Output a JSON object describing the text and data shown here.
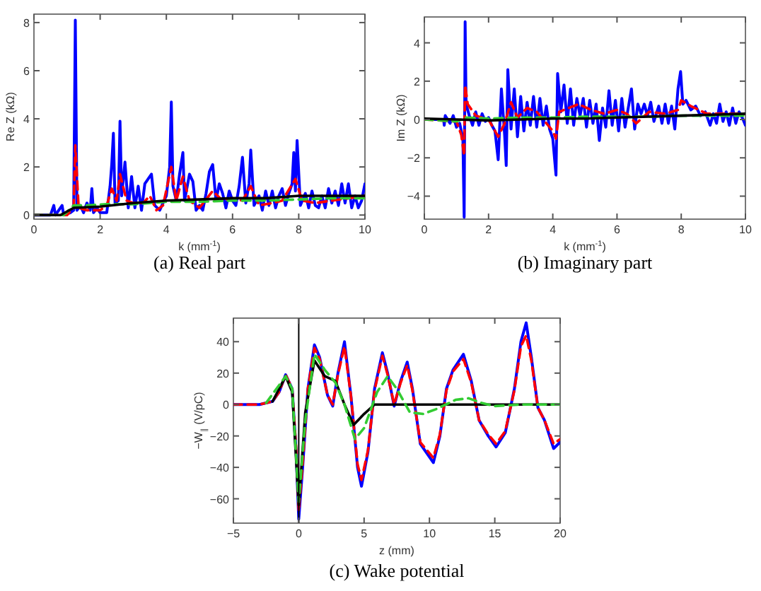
{
  "chart_data": [
    {
      "type": "line",
      "title": "(a) Real part",
      "xlabel": "k (mm$^{-1}$)",
      "ylabel": "Re Z (kΩ)",
      "xlim": [
        0,
        10
      ],
      "ylim": [
        -0.17,
        8.35
      ],
      "xticks": [
        0,
        2,
        4,
        6,
        8,
        10
      ],
      "yticks": [
        0,
        2,
        4,
        6,
        8
      ],
      "grid": false,
      "series": [
        {
          "color": "#0000ff",
          "line_style": "solid",
          "x": [
            0,
            0.5,
            0.6,
            0.65,
            0.85,
            0.9,
            1.1,
            1.2,
            1.25,
            1.3,
            1.4,
            1.5,
            1.6,
            1.7,
            1.75,
            1.8,
            1.9,
            2.0,
            2.2,
            2.3,
            2.35,
            2.4,
            2.45,
            2.55,
            2.6,
            2.65,
            2.75,
            2.85,
            2.95,
            3.05,
            3.15,
            3.25,
            3.35,
            3.45,
            3.55,
            3.65,
            3.8,
            3.9,
            4.0,
            4.1,
            4.15,
            4.2,
            4.3,
            4.4,
            4.5,
            4.55,
            4.7,
            4.8,
            4.9,
            5.0,
            5.1,
            5.2,
            5.3,
            5.4,
            5.5,
            5.6,
            5.7,
            5.8,
            5.9,
            6.0,
            6.1,
            6.2,
            6.3,
            6.4,
            6.5,
            6.55,
            6.65,
            6.8,
            6.9,
            7.0,
            7.1,
            7.2,
            7.3,
            7.4,
            7.5,
            7.6,
            7.7,
            7.8,
            7.85,
            7.9,
            7.95,
            8.05,
            8.2,
            8.3,
            8.4,
            8.5,
            8.6,
            8.7,
            8.8,
            8.9,
            9.0,
            9.1,
            9.2,
            9.3,
            9.4,
            9.5,
            9.6,
            9.7,
            9.8,
            9.9,
            10
          ],
          "values": [
            0,
            0,
            0.4,
            0,
            0.4,
            0,
            0.1,
            0.2,
            8.1,
            0.2,
            0.4,
            0.1,
            0.5,
            0.2,
            1.1,
            0.1,
            0.3,
            0.1,
            0.1,
            1.2,
            2.1,
            3.4,
            0.5,
            0.6,
            3.9,
            0.8,
            2.2,
            0.3,
            1.6,
            0.3,
            1.2,
            0.2,
            1.3,
            1.5,
            1.7,
            0.4,
            0.2,
            0.5,
            0.8,
            2.0,
            4.7,
            1.2,
            0.6,
            1.7,
            2.6,
            0.6,
            1.7,
            1.4,
            0.2,
            0.4,
            0.2,
            0.9,
            1.8,
            2.1,
            0.6,
            1.3,
            0.9,
            0.3,
            1.0,
            0.6,
            0.4,
            1.2,
            2.4,
            0.5,
            1.3,
            2.7,
            0.4,
            0.8,
            0.2,
            1.0,
            0.4,
            1.0,
            0.3,
            0.8,
            1.1,
            0.4,
            0.9,
            1.3,
            2.6,
            1.0,
            3.1,
            0.4,
            0.9,
            0.3,
            1.0,
            0.4,
            0.3,
            0.8,
            0.3,
            1.1,
            0.5,
            1.0,
            0.4,
            1.3,
            0.5,
            1.3,
            0.3,
            0.8,
            0.3,
            0.6,
            1.3
          ]
        },
        {
          "color": "#ff0000",
          "line_style": "dashed",
          "x": [
            0,
            1.0,
            1.2,
            1.25,
            1.35,
            1.6,
            2.0,
            2.2,
            2.35,
            2.5,
            2.6,
            2.8,
            3.0,
            3.3,
            3.5,
            3.7,
            3.9,
            4.15,
            4.3,
            4.5,
            4.7,
            5.0,
            5.4,
            5.7,
            6.0,
            6.3,
            6.55,
            6.8,
            7.2,
            7.5,
            7.9,
            8.1,
            8.5,
            9.0,
            9.5,
            10
          ],
          "values": [
            0,
            0,
            0.3,
            2.9,
            0.3,
            0.2,
            0.2,
            0.4,
            1.1,
            0.6,
            1.7,
            0.6,
            0.5,
            0.5,
            0.8,
            0.2,
            0.4,
            2.0,
            0.6,
            1.6,
            0.6,
            0.3,
            1.0,
            0.6,
            0.7,
            0.6,
            1.2,
            0.4,
            0.5,
            0.6,
            1.5,
            0.6,
            0.5,
            0.6,
            0.7,
            0.8
          ]
        },
        {
          "color": "#33cc33",
          "line_style": "dashed",
          "x": [
            0,
            0.9,
            1.2,
            1.6,
            2.2,
            3,
            4,
            5,
            6,
            7,
            8,
            9,
            10
          ],
          "values": [
            0,
            0,
            0.4,
            0.4,
            0.45,
            0.45,
            0.55,
            0.55,
            0.6,
            0.6,
            0.65,
            0.7,
            0.7
          ]
        },
        {
          "color": "#000000",
          "line_style": "solid",
          "x": [
            0,
            0.8,
            1.2,
            2,
            3,
            4,
            5,
            6,
            7,
            8,
            9,
            10
          ],
          "values": [
            0,
            0,
            0.3,
            0.35,
            0.5,
            0.6,
            0.65,
            0.7,
            0.7,
            0.8,
            0.8,
            0.8
          ]
        }
      ]
    },
    {
      "type": "line",
      "title": "(b) Imaginary part",
      "xlabel": "k (mm$^{-1}$)",
      "ylabel": "Im Z (kΩ)",
      "xlim": [
        0,
        10
      ],
      "ylim": [
        -5.2,
        5.35
      ],
      "xticks": [
        0,
        2,
        4,
        6,
        8,
        10
      ],
      "yticks": [
        {
          "value": -4,
          "label": "−4"
        },
        {
          "value": -2,
          "label": "−2"
        },
        0,
        2,
        4
      ],
      "grid": false,
      "series": [
        {
          "color": "#0000ff",
          "line_style": "solid",
          "x": [
            0,
            0.6,
            0.62,
            0.65,
            0.8,
            0.9,
            1.0,
            1.1,
            1.2,
            1.24,
            1.27,
            1.3,
            1.4,
            1.5,
            1.6,
            1.7,
            1.8,
            1.9,
            2.0,
            2.1,
            2.2,
            2.3,
            2.4,
            2.5,
            2.55,
            2.6,
            2.7,
            2.8,
            2.9,
            3.0,
            3.1,
            3.2,
            3.3,
            3.4,
            3.5,
            3.6,
            3.7,
            3.8,
            3.9,
            4.0,
            4.1,
            4.15,
            4.25,
            4.35,
            4.45,
            4.55,
            4.65,
            4.75,
            4.85,
            4.95,
            5.05,
            5.15,
            5.25,
            5.35,
            5.45,
            5.55,
            5.65,
            5.75,
            5.85,
            5.95,
            6.05,
            6.15,
            6.25,
            6.35,
            6.45,
            6.55,
            6.65,
            6.75,
            6.85,
            6.95,
            7.05,
            7.15,
            7.3,
            7.4,
            7.5,
            7.6,
            7.7,
            7.8,
            7.9,
            7.98,
            8.05,
            8.15,
            8.3,
            8.45,
            8.6,
            8.75,
            8.9,
            9.0,
            9.1,
            9.2,
            9.3,
            9.4,
            9.5,
            9.6,
            9.7,
            9.8,
            9.9,
            10
          ],
          "values": [
            0,
            0,
            -0.3,
            0.2,
            -0.2,
            0.2,
            -0.4,
            -0.2,
            -1.0,
            -5.1,
            5.1,
            0.8,
            0.2,
            -0.3,
            0.4,
            -0.3,
            0.3,
            -0.1,
            0.1,
            -0.3,
            -0.6,
            -2.1,
            1.6,
            -0.8,
            -2.4,
            2.6,
            -0.5,
            1.6,
            -0.9,
            1.2,
            -0.6,
            0.9,
            -0.3,
            1.2,
            -0.4,
            1.1,
            -0.3,
            0.7,
            -0.5,
            -1.0,
            -2.9,
            2.4,
            0.4,
            1.8,
            -0.2,
            1.6,
            -0.3,
            1.1,
            0.2,
            1.1,
            -0.4,
            1.0,
            -0.2,
            0.8,
            -1.1,
            0.6,
            -0.4,
            1.5,
            -0.3,
            1.0,
            -0.6,
            1.1,
            -0.4,
            0.6,
            1.6,
            -0.5,
            0.8,
            0.3,
            0.8,
            0.2,
            0.9,
            -0.1,
            0.7,
            -0.2,
            0.8,
            -0.2,
            0.7,
            -0.5,
            1.6,
            2.5,
            0.8,
            1.0,
            0.5,
            0.7,
            0.2,
            0.4,
            -0.3,
            0.3,
            -0.2,
            0.8,
            -0.1,
            0.4,
            -0.3,
            0.6,
            -0.2,
            0.4,
            0.1,
            -0.3
          ]
        },
        {
          "color": "#ff0000",
          "line_style": "dashed",
          "x": [
            0,
            1.0,
            1.15,
            1.24,
            1.27,
            1.35,
            1.6,
            2.0,
            2.3,
            2.5,
            2.7,
            2.9,
            3.2,
            3.5,
            3.8,
            4.0,
            4.1,
            4.2,
            4.5,
            4.8,
            5.2,
            5.6,
            6.0,
            6.3,
            6.6,
            7.0,
            7.5,
            7.9,
            8.0,
            8.3,
            8.8,
            9.3,
            10
          ],
          "values": [
            0,
            -0.1,
            -0.8,
            -1.9,
            1.8,
            0.8,
            0.2,
            0,
            -0.9,
            -0.2,
            0.9,
            0.1,
            0.6,
            0.4,
            -0.2,
            -0.6,
            -1.0,
            0.4,
            0.6,
            0.8,
            0.5,
            0.3,
            0.5,
            0.3,
            -0.2,
            0.4,
            0.3,
            0.5,
            1.0,
            0.7,
            0.3,
            0.3,
            0.3
          ]
        },
        {
          "color": "#33cc33",
          "line_style": "dashed",
          "x": [
            0,
            1,
            1.3,
            2,
            3,
            4,
            5,
            6,
            7,
            8,
            9,
            10
          ],
          "values": [
            0,
            -0.1,
            0.1,
            0.05,
            0.1,
            0.1,
            0.15,
            0.15,
            0.15,
            0.2,
            0.2,
            0.2
          ]
        },
        {
          "color": "#000000",
          "line_style": "solid",
          "x": [
            0,
            1,
            2,
            3,
            4,
            5,
            6,
            7,
            8,
            9,
            10
          ],
          "values": [
            0.05,
            0,
            -0.05,
            0,
            0.05,
            0.05,
            0.1,
            0.15,
            0.2,
            0.25,
            0.3
          ]
        }
      ]
    },
    {
      "type": "line",
      "title": "(c) Wake potential",
      "xlabel": "z (mm)",
      "ylabel": "−W$_{∥}$ (V/pC)",
      "xlim": [
        -5,
        20
      ],
      "ylim": [
        -75.5,
        55
      ],
      "xticks": [
        {
          "value": -5,
          "label": "−5"
        },
        0,
        5,
        10,
        15,
        20
      ],
      "yticks": [
        {
          "value": -60,
          "label": "−60"
        },
        {
          "value": -40,
          "label": "−40"
        },
        {
          "value": -20,
          "label": "−20"
        },
        0,
        20,
        40
      ],
      "grid": false,
      "ref_lines": [
        {
          "axis": "x",
          "value": 0,
          "color": "#000000",
          "line_style": "solid"
        }
      ],
      "series": [
        {
          "color": "#0000ff",
          "line_style": "solid",
          "x": [
            -5,
            -3,
            -2,
            -1.5,
            -1,
            -0.5,
            -0.2,
            0,
            0.3,
            0.7,
            1.2,
            1.6,
            2.2,
            2.6,
            3.0,
            3.5,
            4.0,
            4.5,
            4.8,
            5.3,
            5.8,
            6.4,
            6.8,
            7.3,
            7.8,
            8.3,
            8.7,
            9.3,
            10.3,
            10.8,
            11.3,
            11.8,
            12.6,
            13.2,
            13.8,
            14.5,
            15.1,
            15.8,
            16.5,
            17.0,
            17.4,
            17.8,
            18.3,
            18.8,
            19.5,
            20
          ],
          "values": [
            0,
            0,
            2,
            8,
            19,
            10,
            -30,
            -73,
            -40,
            10,
            38,
            30,
            6,
            -1,
            20,
            40,
            5,
            -40,
            -52,
            -30,
            10,
            33,
            20,
            -1,
            15,
            27,
            10,
            -25,
            -37,
            -20,
            10,
            22,
            32,
            15,
            -10,
            -20,
            -27,
            -18,
            10,
            40,
            52,
            30,
            -2,
            -10,
            -28,
            -24
          ]
        },
        {
          "color": "#ff0000",
          "line_style": "dashed",
          "x": [
            -5,
            -3,
            -2,
            -1.5,
            -1,
            -0.5,
            -0.2,
            0,
            0.3,
            0.7,
            1.2,
            1.6,
            2.2,
            2.6,
            3.0,
            3.5,
            4.0,
            4.5,
            4.8,
            5.3,
            5.8,
            6.4,
            6.8,
            7.3,
            7.8,
            8.3,
            8.7,
            9.3,
            10.3,
            10.8,
            11.3,
            11.8,
            12.6,
            13.2,
            13.8,
            14.5,
            15.1,
            15.8,
            16.5,
            17.0,
            17.4,
            17.8,
            18.3,
            18.8,
            19.5,
            20
          ],
          "values": [
            0,
            0,
            2,
            8,
            19,
            10,
            -28,
            -68,
            -38,
            10,
            36,
            29,
            6,
            0,
            19,
            37,
            5,
            -38,
            -48,
            -29,
            9,
            31,
            19,
            0,
            14,
            25,
            9,
            -24,
            -34,
            -19,
            9,
            21,
            29,
            14,
            -10,
            -19,
            -25,
            -17,
            9,
            37,
            44,
            28,
            -2,
            -10,
            -25,
            -22
          ]
        },
        {
          "color": "#000000",
          "line_style": "solid",
          "x": [
            -2,
            -1,
            -0.5,
            0,
            0.5,
            1.2,
            2,
            2.8,
            3.5,
            4.2,
            5,
            5.8,
            7,
            20
          ],
          "values": [
            2,
            18,
            8,
            -64,
            -5,
            28,
            18,
            15,
            0,
            -13,
            -6,
            0,
            0,
            0
          ]
        },
        {
          "color": "#33cc33",
          "line_style": "dashed",
          "x": [
            -2.5,
            -1,
            -0.5,
            0,
            0.5,
            1.2,
            2,
            2.8,
            3.5,
            4.3,
            5,
            6,
            6.8,
            7.5,
            8.5,
            9.5,
            10.5,
            12,
            13,
            14,
            15,
            17,
            20
          ],
          "values": [
            1,
            18,
            10,
            -62,
            -10,
            32,
            22,
            14,
            0,
            -22,
            -15,
            8,
            18,
            10,
            -5,
            -6,
            -3,
            3,
            4,
            1,
            -1,
            0,
            0
          ]
        }
      ]
    }
  ]
}
